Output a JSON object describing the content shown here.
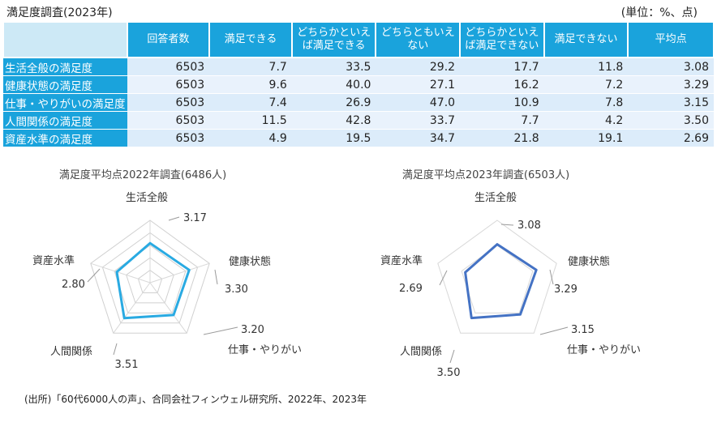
{
  "header": {
    "title": "満足度調査(2023年)",
    "unit": "(単位：%、点)"
  },
  "table": {
    "columns": [
      "回答者数",
      "満足できる",
      "どちらかといえば満足できる",
      "どちらともいえない",
      "どちらかといえば満足できない",
      "満足できない",
      "平均点"
    ],
    "rows": [
      {
        "label": "生活全般の満足度",
        "values": [
          "6503",
          "7.7",
          "33.5",
          "29.2",
          "17.7",
          "11.8",
          "3.08"
        ]
      },
      {
        "label": "健康状態の満足度",
        "values": [
          "6503",
          "9.6",
          "40.0",
          "27.1",
          "16.2",
          "7.2",
          "3.29"
        ]
      },
      {
        "label": "仕事・やりがいの満足度",
        "values": [
          "6503",
          "7.4",
          "26.9",
          "47.0",
          "10.9",
          "7.8",
          "3.15"
        ]
      },
      {
        "label": "人間関係の満足度",
        "values": [
          "6503",
          "11.5",
          "42.8",
          "33.7",
          "7.7",
          "4.2",
          "3.50"
        ]
      },
      {
        "label": "資産水準の満足度",
        "values": [
          "6503",
          "4.9",
          "19.5",
          "34.7",
          "21.8",
          "19.1",
          "2.69"
        ]
      }
    ]
  },
  "chart_data": [
    {
      "type": "radar",
      "title": "満足度平均点2022年調査(6486人)",
      "categories": [
        "生活全般",
        "健康状態",
        "仕事・やりがい",
        "人間関係",
        "資産水準"
      ],
      "values": [
        3.17,
        3.3,
        3.2,
        3.51,
        2.8
      ],
      "value_labels": [
        "3.17",
        "3.30",
        "3.20",
        "3.51",
        "2.80"
      ],
      "range": [
        0,
        5
      ],
      "grid": true,
      "color": "#29aae2"
    },
    {
      "type": "radar",
      "title": "満足度平均点2023年調査(6503人)",
      "categories": [
        "生活全般",
        "健康状態",
        "仕事・やりがい",
        "人間関係",
        "資産水準"
      ],
      "values": [
        3.08,
        3.29,
        3.15,
        3.5,
        2.69
      ],
      "value_labels": [
        "3.08",
        "3.29",
        "3.15",
        "3.50",
        "2.69"
      ],
      "range": [
        0,
        5
      ],
      "grid": false,
      "color": "#4472c4"
    }
  ],
  "source": "(出所)「60代6000人の声」、合同会社フィンウェル研究所、2022年、2023年"
}
